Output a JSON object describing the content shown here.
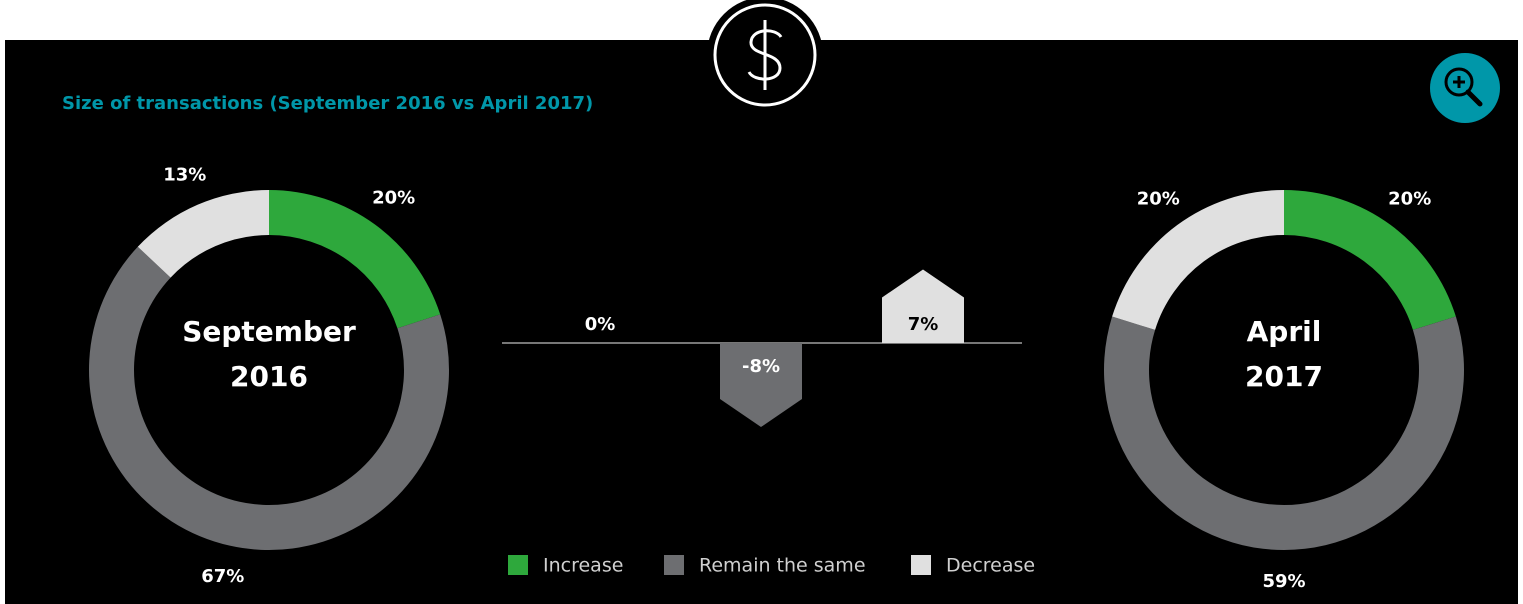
{
  "title": "Size of transactions (September 2016 vs April 2017)",
  "chart_data": [
    {
      "type": "pie",
      "center_label": [
        "September",
        "2016"
      ],
      "values": [
        20,
        67,
        13
      ],
      "value_labels": [
        "20%",
        "67%",
        "13%"
      ],
      "colors": [
        "#2ea83c",
        "#6d6e71",
        "#e0e0e0"
      ]
    },
    {
      "type": "bar",
      "categories": [
        "Increase",
        "Remain the same",
        "Decrease"
      ],
      "values": [
        0,
        -8,
        7
      ],
      "value_labels": [
        "0%",
        "-8%",
        "7%"
      ],
      "colors": [
        "#2ea83c",
        "#6d6e71",
        "#e0e0e0"
      ]
    },
    {
      "type": "pie",
      "center_label": [
        "April",
        "2017"
      ],
      "values": [
        20,
        59,
        20
      ],
      "value_labels": [
        "20%",
        "59%",
        "20%"
      ],
      "colors": [
        "#2ea83c",
        "#6d6e71",
        "#e0e0e0"
      ]
    }
  ]
}
